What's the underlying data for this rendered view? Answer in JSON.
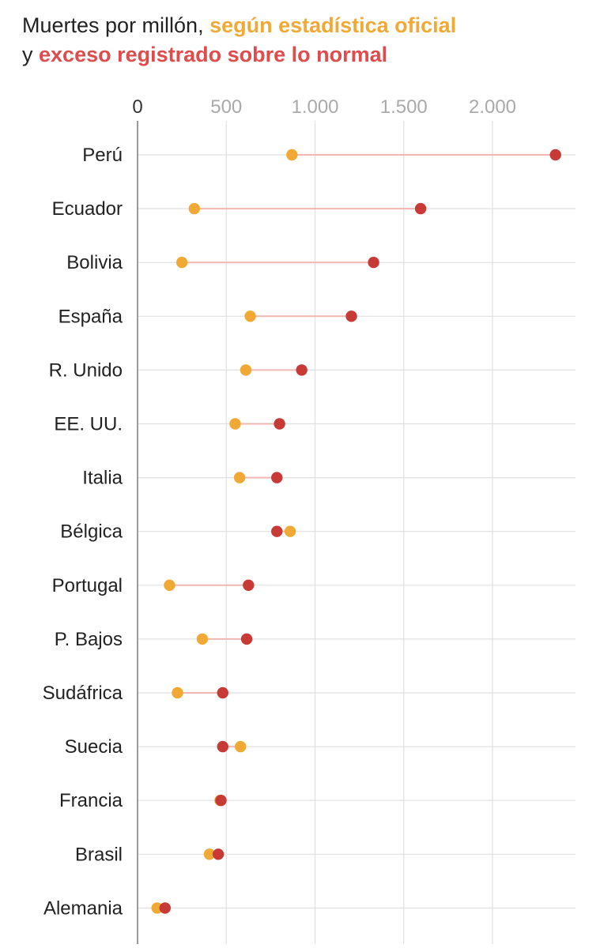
{
  "title": {
    "line1_plain": "Muertes por millón, ",
    "line1_highlight": "según estadística oficial",
    "line2_plain": "y ",
    "line2_highlight": "exceso registrado sobre lo normal"
  },
  "colors": {
    "official": "#f0a935",
    "excess": "#c73a36",
    "connector": "#f0b7b0",
    "grid": "#e0e0e0",
    "axis": "#9a9a9a"
  },
  "chart_data": {
    "type": "dumbbell",
    "xlim": [
      0,
      2450
    ],
    "xticks": [
      0,
      500,
      1000,
      1500,
      2000
    ],
    "xtick_labels": [
      "0",
      "500",
      "1.000",
      "1.500",
      "2.000"
    ],
    "categories": [
      "Perú",
      "Ecuador",
      "Bolivia",
      "España",
      "R. Unido",
      "EE. UU.",
      "Italia",
      "Bélgica",
      "Portugal",
      "P. Bajos",
      "Sudáfrica",
      "Suecia",
      "Francia",
      "Brasil",
      "Alemania"
    ],
    "series": [
      {
        "name": "según estadística oficial",
        "values": [
          870,
          320,
          250,
          635,
          610,
          550,
          575,
          860,
          180,
          365,
          225,
          580,
          465,
          405,
          110
        ]
      },
      {
        "name": "exceso registrado sobre lo normal",
        "values": [
          2355,
          1595,
          1330,
          1205,
          925,
          800,
          785,
          785,
          625,
          615,
          480,
          480,
          470,
          455,
          155
        ]
      }
    ]
  }
}
